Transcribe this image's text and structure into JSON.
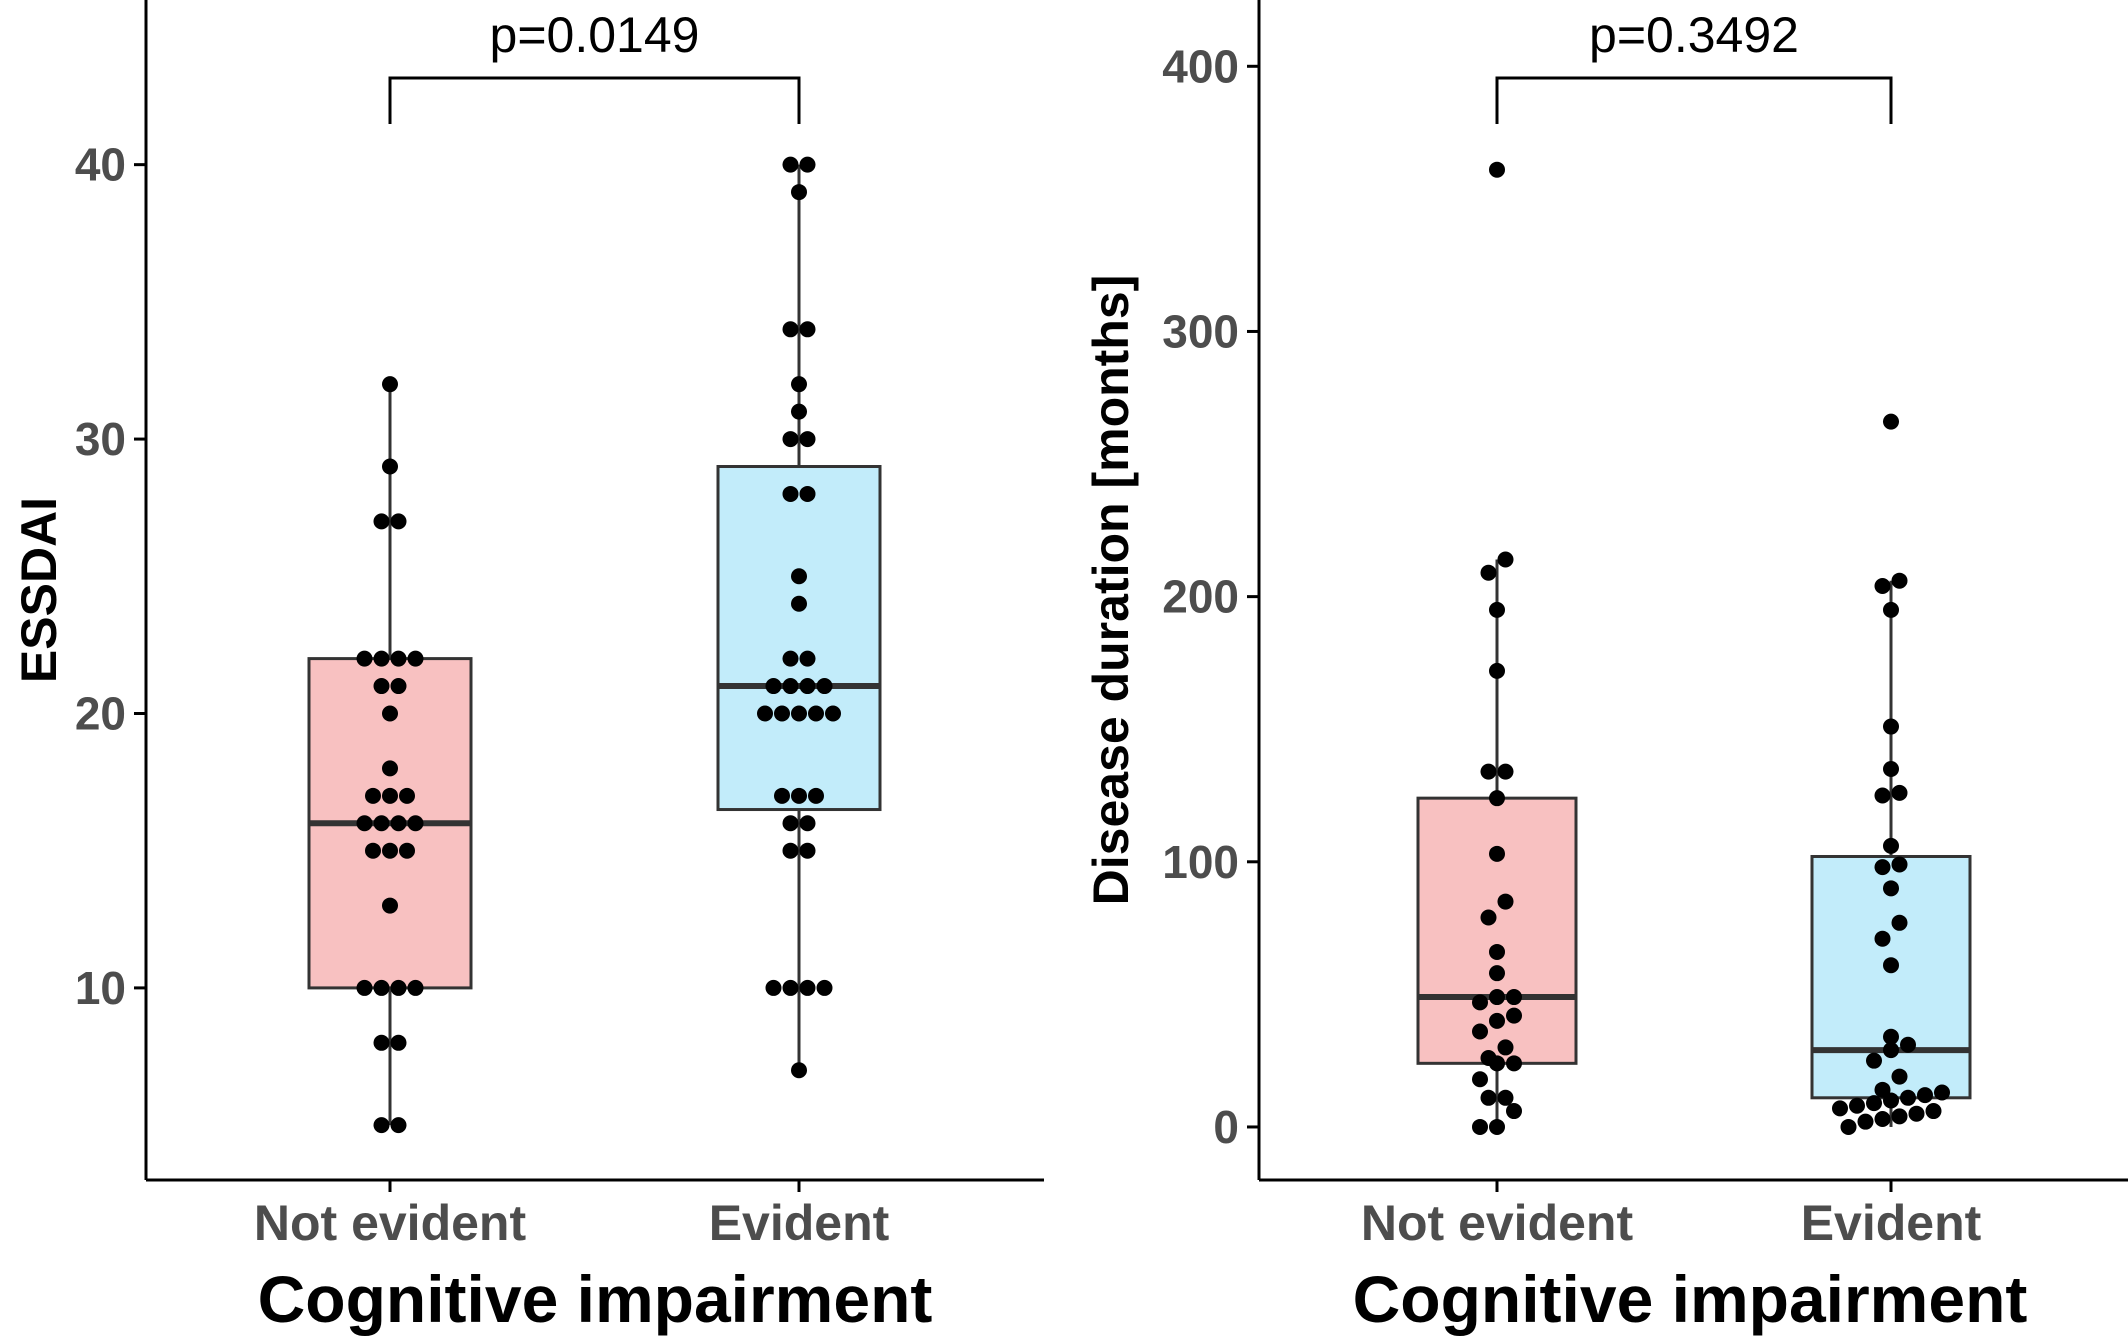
{
  "chart_data": [
    {
      "type": "box",
      "xlabel": "Cognitive impairment",
      "ylabel": "ESSDAI",
      "categories": [
        "Not evident",
        "Evident"
      ],
      "ylim": [
        3,
        46
      ],
      "yticks": [
        10,
        20,
        30,
        40
      ],
      "grid": false,
      "legend": "none",
      "annotation": "p=0.0149",
      "colors": [
        "#f8c1c1",
        "#c2ecfa"
      ],
      "boxes": [
        {
          "category": "Not evident",
          "min": 5,
          "q1": 10,
          "median": 16,
          "q3": 22,
          "max": 32
        },
        {
          "category": "Evident",
          "min": 7,
          "q1": 16.5,
          "median": 21,
          "q3": 29,
          "max": 40
        }
      ],
      "points": [
        [
          5,
          5,
          8,
          8,
          10,
          10,
          10,
          10,
          13,
          15,
          15,
          15,
          16,
          16,
          16,
          16,
          17,
          17,
          17,
          18,
          20,
          21,
          21,
          22,
          22,
          22,
          22,
          27,
          27,
          29,
          32
        ],
        [
          7,
          10,
          10,
          10,
          10,
          15,
          15,
          16,
          16,
          17,
          17,
          17,
          20,
          20,
          20,
          20,
          20,
          21,
          21,
          21,
          21,
          22,
          22,
          24,
          25,
          28,
          28,
          30,
          30,
          31,
          32,
          34,
          34,
          39,
          40,
          40
        ]
      ]
    },
    {
      "type": "box",
      "xlabel": "Cognitive impairment",
      "ylabel": "Disease duration [months]",
      "categories": [
        "Not evident",
        "Evident"
      ],
      "ylim": [
        -20,
        425
      ],
      "yticks": [
        0,
        100,
        200,
        300,
        400
      ],
      "grid": false,
      "legend": "none",
      "annotation": "p=0.3492",
      "colors": [
        "#f8c1c1",
        "#c2ecfa"
      ],
      "boxes": [
        {
          "category": "Not evident",
          "min": 0,
          "q1": 24,
          "median": 49,
          "q3": 124,
          "max": 214
        },
        {
          "category": "Evident",
          "min": 0,
          "q1": 11,
          "median": 29,
          "q3": 102,
          "max": 206
        }
      ],
      "points": [
        [
          0,
          0,
          6,
          11,
          11,
          18,
          24,
          24,
          26,
          30,
          36,
          40,
          42,
          47,
          49,
          49,
          58,
          66,
          79,
          85,
          103,
          124,
          134,
          134,
          172,
          195,
          209,
          214,
          361
        ],
        [
          0,
          2,
          3,
          4,
          5,
          6,
          7,
          8,
          9,
          10,
          11,
          12,
          13,
          14,
          19,
          25,
          29,
          31,
          34,
          61,
          71,
          77,
          90,
          98,
          99,
          106,
          125,
          126,
          135,
          151,
          195,
          204,
          206,
          266
        ]
      ]
    }
  ]
}
